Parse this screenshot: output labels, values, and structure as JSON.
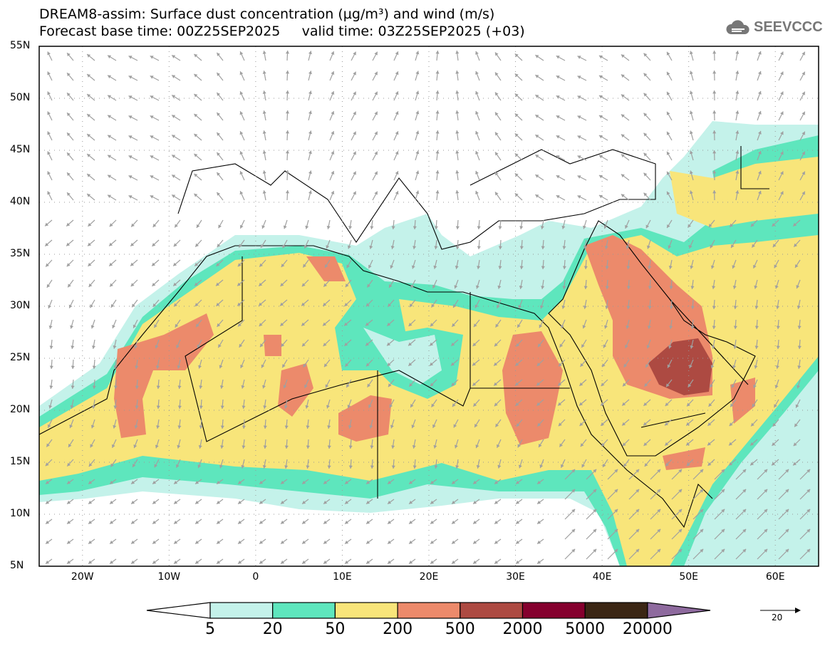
{
  "title": {
    "line1": "DREAM8-assim: Surface dust concentration (µg/m³) and wind (m/s)",
    "line2": "Forecast base time: 00Z25SEP2025     valid time: 03Z25SEP2025 (+03)"
  },
  "logo": "SEEVCCC",
  "axes": {
    "lat_labels": [
      "55N",
      "50N",
      "45N",
      "40N",
      "35N",
      "30N",
      "25N",
      "20N",
      "15N",
      "10N",
      "5N"
    ],
    "lon_labels": [
      "20W",
      "10W",
      "0",
      "10E",
      "20E",
      "30E",
      "40E",
      "50E",
      "60E"
    ],
    "lon_range": [
      -25,
      65
    ],
    "lat_range": [
      5,
      55
    ]
  },
  "colorbar": {
    "labels": [
      "5",
      "20",
      "50",
      "200",
      "500",
      "2000",
      "5000",
      "20000"
    ],
    "colors": [
      "#ffffff",
      "#c4f2ea",
      "#5ee6bd",
      "#f8e57a",
      "#ec8a6b",
      "#ad4a42",
      "#85002e",
      "#3b2614",
      "#8e6a9e"
    ]
  },
  "wind_reference": {
    "label": "20"
  }
}
